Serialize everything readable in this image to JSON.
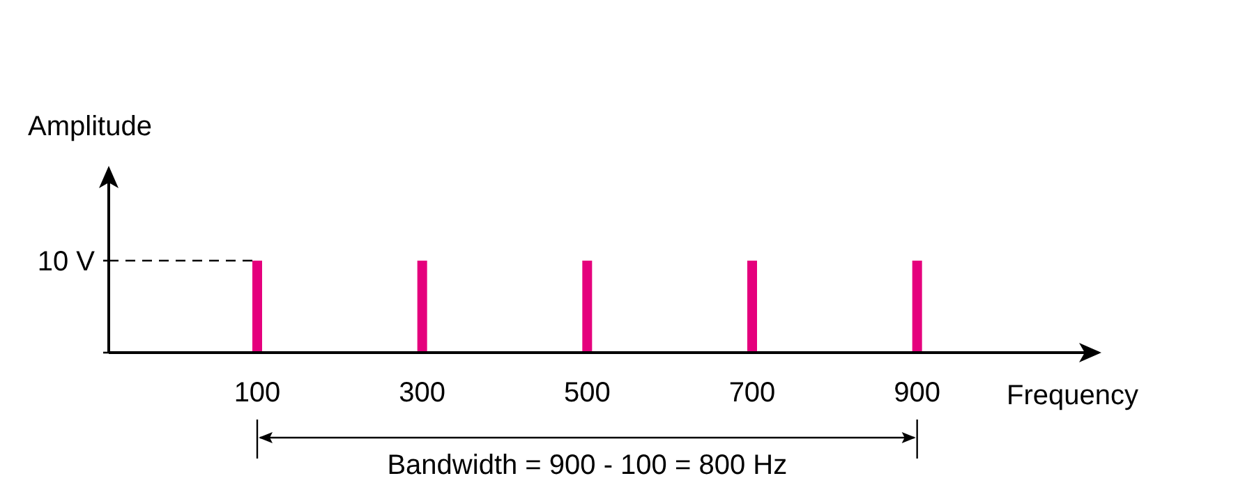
{
  "chart_data": {
    "type": "bar",
    "xlabel": "Frequency",
    "ylabel": "Amplitude",
    "x": [
      100,
      300,
      500,
      700,
      900
    ],
    "values": [
      10,
      10,
      10,
      10,
      10
    ],
    "color": "#e5007d",
    "xlim": [
      -80,
      1120
    ],
    "xticks": [
      100,
      300,
      500,
      700,
      900
    ],
    "ylim": [
      0,
      20
    ],
    "yticks": [
      {
        "value": 0,
        "label": null
      },
      {
        "value": 10,
        "label": "10 V"
      }
    ],
    "ref_lines": [
      {
        "axis": "y",
        "value": 10,
        "line_style": "dashed"
      }
    ],
    "annotations": [
      "Bandwidth = 900 - 100 = 800 Hz"
    ],
    "grid": false
  }
}
